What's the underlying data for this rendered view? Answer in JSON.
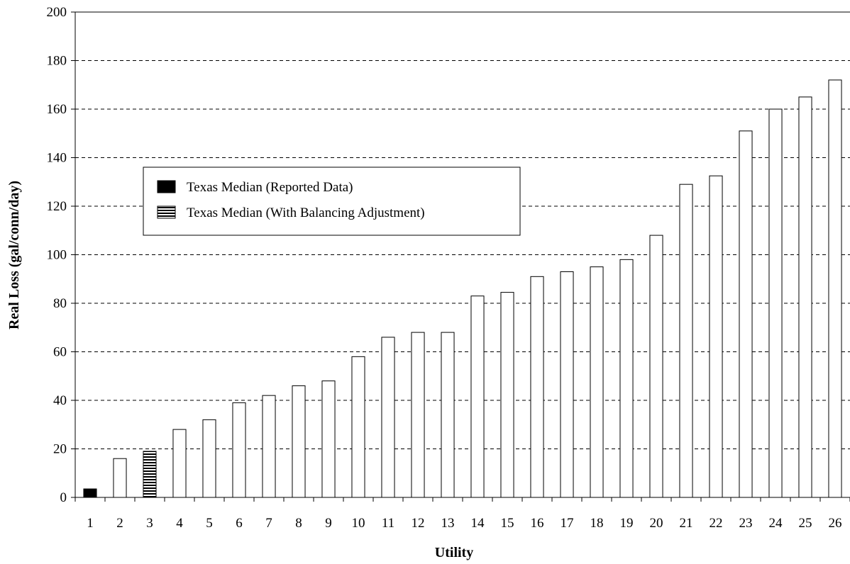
{
  "chart_data": {
    "type": "bar",
    "title": "",
    "xlabel": "Utility",
    "ylabel": "Real Loss (gal/conn/day)",
    "ylim": [
      0,
      200
    ],
    "yticks": [
      0,
      20,
      40,
      60,
      80,
      100,
      120,
      140,
      160,
      180,
      200
    ],
    "grid": "horizontal dashed",
    "categories": [
      "1",
      "2",
      "3",
      "4",
      "5",
      "6",
      "7",
      "8",
      "9",
      "10",
      "11",
      "12",
      "13",
      "14",
      "15",
      "16",
      "17",
      "18",
      "19",
      "20",
      "21",
      "22",
      "23",
      "24",
      "25",
      "26"
    ],
    "values": [
      3.5,
      16,
      19,
      28,
      32,
      39,
      42,
      46,
      48,
      58,
      66,
      68,
      68,
      83,
      84.5,
      91,
      93,
      95,
      98,
      108,
      129,
      132.5,
      151,
      160,
      165,
      172
    ],
    "bar_styles": [
      "solid",
      "plain",
      "striped",
      "plain",
      "plain",
      "plain",
      "plain",
      "plain",
      "plain",
      "plain",
      "plain",
      "plain",
      "plain",
      "plain",
      "plain",
      "plain",
      "plain",
      "plain",
      "plain",
      "plain",
      "plain",
      "plain",
      "plain",
      "plain",
      "plain",
      "plain"
    ],
    "legend": {
      "position": "upper-left",
      "items": [
        {
          "label": "Texas Median (Reported Data)",
          "style": "solid"
        },
        {
          "label": "Texas Median (With Balancing Adjustment)",
          "style": "striped"
        }
      ]
    },
    "colors": {
      "bar_fill": "#ffffff",
      "bar_stroke": "#000000",
      "solid_fill": "#000000",
      "grid": "#000000"
    }
  }
}
